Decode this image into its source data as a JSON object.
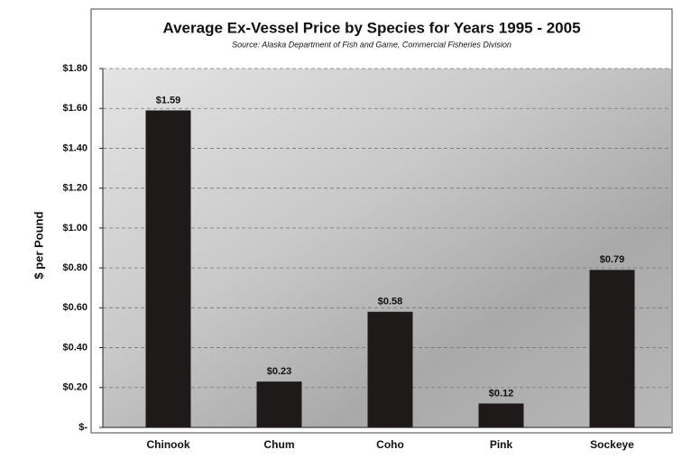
{
  "chart_data": {
    "type": "bar",
    "title": "Average Ex-Vessel Price by Species for Years 1995 - 2005",
    "subtitle": "Source: Alaska Department of Fish and Game, Commercial Fisheries Division",
    "y_label": "$ per Pound",
    "categories": [
      "Chinook",
      "Chum",
      "Coho",
      "Pink",
      "Sockeye"
    ],
    "values": [
      1.59,
      0.23,
      0.58,
      0.12,
      0.79
    ],
    "value_labels": [
      "$1.59",
      "$0.23",
      "$0.58",
      "$0.12",
      "$0.79"
    ],
    "color": "#1e1a1a",
    "ylim": [
      0,
      1.8
    ],
    "yticks": [
      {
        "value": 0,
        "label": "$-"
      },
      {
        "value": 0.2,
        "label": "$0.20"
      },
      {
        "value": 0.4,
        "label": "$0.40"
      },
      {
        "value": 0.6,
        "label": "$0.60"
      },
      {
        "value": 0.8,
        "label": "$0.80"
      },
      {
        "value": 1.0,
        "label": "$1.00"
      },
      {
        "value": 1.2,
        "label": "$1.20"
      },
      {
        "value": 1.4,
        "label": "$1.40"
      },
      {
        "value": 1.6,
        "label": "$1.60"
      },
      {
        "value": 1.8,
        "label": "$1.80"
      }
    ],
    "grid": true
  }
}
